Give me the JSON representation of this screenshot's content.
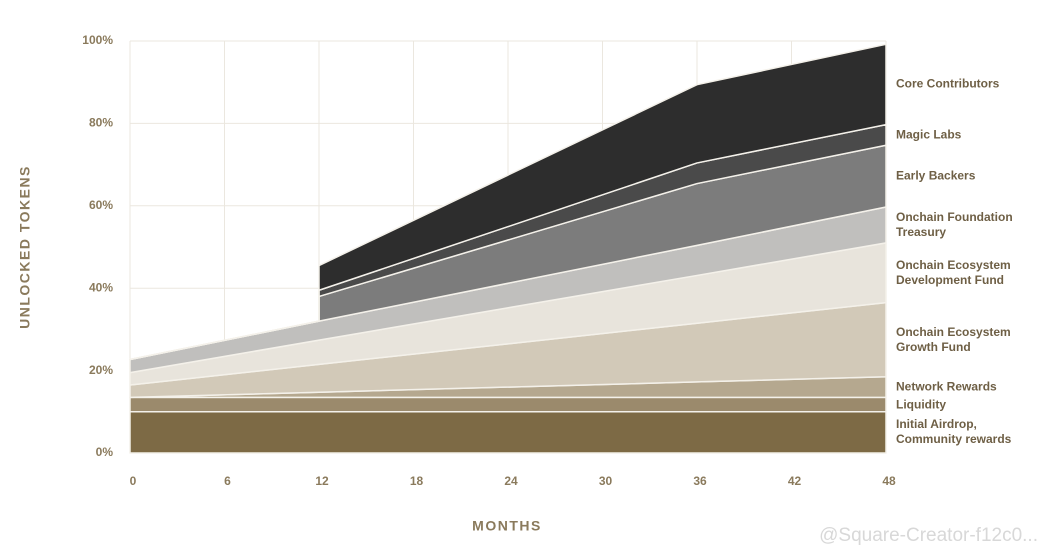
{
  "chart_data": {
    "type": "stacked_area",
    "y_label": "UNLOCKED TOKENS",
    "x_label": "MONTHS",
    "x": [
      0,
      12,
      12,
      36,
      48
    ],
    "xlim": [
      0,
      48
    ],
    "xticks": [
      0,
      6,
      12,
      18,
      24,
      30,
      36,
      42,
      48
    ],
    "ylim": [
      0,
      100
    ],
    "yticks": [
      {
        "value": 0,
        "label": "0%"
      },
      {
        "value": 20,
        "label": "20%"
      },
      {
        "value": 40,
        "label": "40%"
      },
      {
        "value": 60,
        "label": "60%"
      },
      {
        "value": 80,
        "label": "80%"
      },
      {
        "value": 100,
        "label": "100%"
      }
    ],
    "grid": true,
    "series": [
      {
        "name": "Initial Airdrop, Community rewards",
        "color": "#7d6a45",
        "values": [
          10,
          10,
          10,
          10,
          10
        ]
      },
      {
        "name": "Liquidity",
        "color": "#9b8a6c",
        "values": [
          3.5,
          3.5,
          3.5,
          3.5,
          3.5
        ]
      },
      {
        "name": "Network Rewards",
        "color": "#b5a88f",
        "values": [
          0,
          1.25,
          1.25,
          3.75,
          5
        ]
      },
      {
        "name": "Onchain Ecosystem Growth Fund",
        "color": "#d2c9b8",
        "values": [
          3,
          6.75,
          6.75,
          14.25,
          18
        ]
      },
      {
        "name": "Onchain Ecosystem Development Fund",
        "color": "#e8e4dc",
        "values": [
          3,
          5.9,
          5.9,
          11.6,
          14.5
        ]
      },
      {
        "name": "Onchain Foundation Treasury",
        "color": "#c0bfbd",
        "values": [
          3.2,
          4.6,
          4.6,
          7.3,
          8.7
        ]
      },
      {
        "name": "Early Backers",
        "color": "#7c7c7c",
        "values": [
          0,
          0,
          6,
          15,
          15
        ]
      },
      {
        "name": "Magic Labs",
        "color": "#4a4a4a",
        "values": [
          0,
          0,
          1.5,
          5,
          5
        ]
      },
      {
        "name": "Core Contributors",
        "color": "#2d2d2d",
        "values": [
          0,
          0,
          6,
          19,
          19.5
        ]
      }
    ]
  },
  "watermark": "@Square-Creator-f12c0..."
}
